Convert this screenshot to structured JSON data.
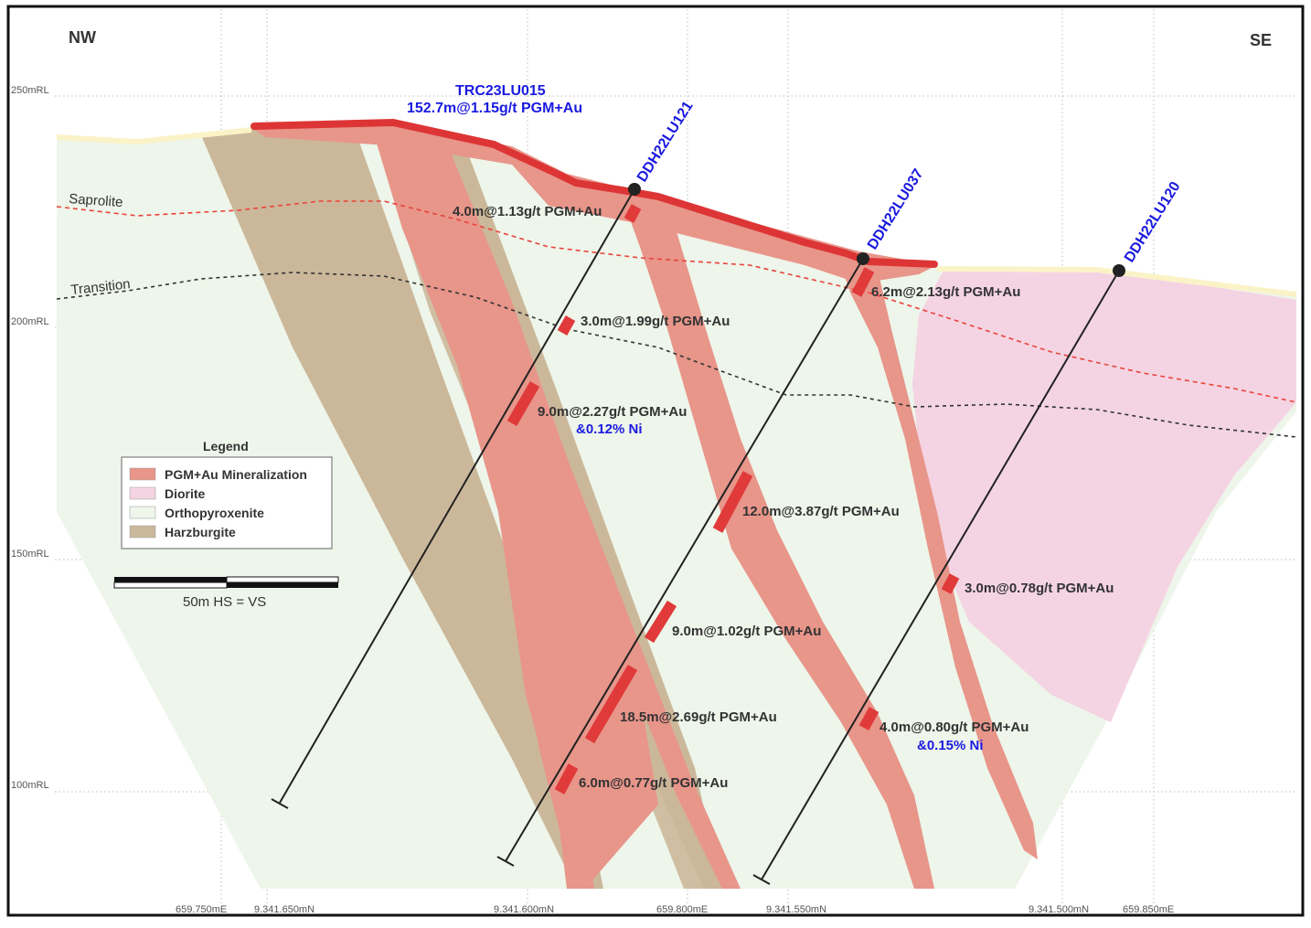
{
  "directions": {
    "left": "NW",
    "right": "SE"
  },
  "rl_labels": [
    "250mRL",
    "200mRL",
    "150mRL",
    "100mRL"
  ],
  "easting_labels": [
    "659.750mE",
    "9.341.650mN",
    "9.341.600mN",
    "659.800mE",
    "9.341.550mN",
    "9.341.500mN",
    "659.850mE"
  ],
  "boundaries": {
    "saprolite": "Saprolite",
    "transition": "Transition"
  },
  "trench": {
    "name": "TRC23LU015",
    "result": "152.7m@1.15g/t PGM+Au"
  },
  "holes": [
    {
      "name": "DDH22LU121"
    },
    {
      "name": "DDH22LU037"
    },
    {
      "name": "DDH22LU120"
    }
  ],
  "intercepts": [
    {
      "text": "4.0m@1.13g/t PGM+Au"
    },
    {
      "text": "3.0m@1.99g/t PGM+Au"
    },
    {
      "text": "9.0m@2.27g/t PGM+Au",
      "extra": "&0.12% Ni"
    },
    {
      "text": "6.2m@2.13g/t PGM+Au"
    },
    {
      "text": "12.0m@3.87g/t PGM+Au"
    },
    {
      "text": "3.0m@0.78g/t PGM+Au"
    },
    {
      "text": "9.0m@1.02g/t PGM+Au"
    },
    {
      "text": "18.5m@2.69g/t PGM+Au"
    },
    {
      "text": "4.0m@0.80g/t PGM+Au",
      "extra": "&0.15% Ni"
    },
    {
      "text": "6.0m@0.77g/t PGM+Au"
    }
  ],
  "legend": {
    "title": "Legend",
    "items": [
      {
        "label": "PGM+Au Mineralization",
        "color": "#e8958a"
      },
      {
        "label": "Diorite",
        "color": "#f4d4e3"
      },
      {
        "label": "Orthopyroxenite",
        "color": "#eef5ea"
      },
      {
        "label": "Harzburgite",
        "color": "#cbb89a"
      }
    ]
  },
  "scale_bar": {
    "label": "50m  HS = VS"
  },
  "colors": {
    "mineralization": "#e8958a",
    "high_grade": "#e03a3a",
    "diorite": "#f4d4e3",
    "orthopyroxenite": "#eef5ea",
    "harzburgite": "#cbb89a",
    "hole_name": "#1a1adf"
  }
}
